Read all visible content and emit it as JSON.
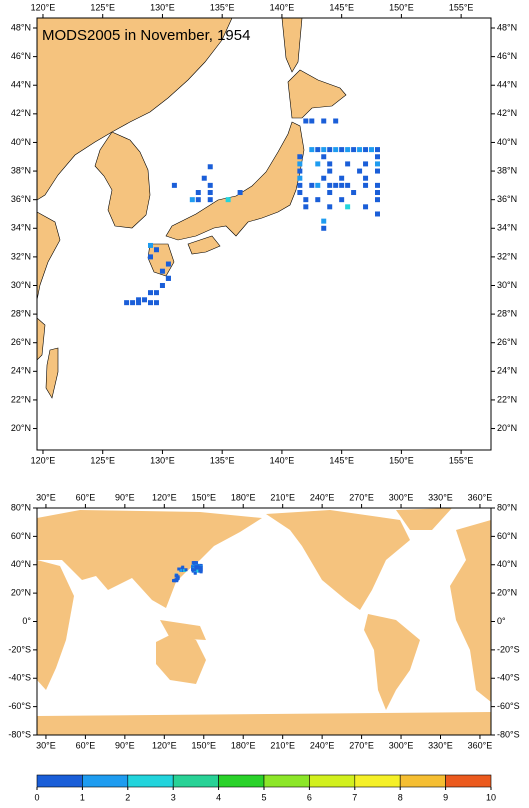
{
  "maps": [
    {
      "title": "MODS2005 in November, 1954",
      "xlim": [
        119.5,
        157.5
      ],
      "ylim": [
        18.5,
        48.7
      ],
      "xticks": [
        {
          "value": 120,
          "label": "120°E"
        },
        {
          "value": 125,
          "label": "125°E"
        },
        {
          "value": 130,
          "label": "130°E"
        },
        {
          "value": 135,
          "label": "135°E"
        },
        {
          "value": 140,
          "label": "140°E"
        },
        {
          "value": 145,
          "label": "145°E"
        },
        {
          "value": 150,
          "label": "150°E"
        },
        {
          "value": 155,
          "label": "155°E"
        }
      ],
      "yticks": [
        {
          "value": 20,
          "label": "20°N"
        },
        {
          "value": 22,
          "label": "22°N"
        },
        {
          "value": 24,
          "label": "24°N"
        },
        {
          "value": 26,
          "label": "26°N"
        },
        {
          "value": 28,
          "label": "28°N"
        },
        {
          "value": 30,
          "label": "30°N"
        },
        {
          "value": 32,
          "label": "32°N"
        },
        {
          "value": 34,
          "label": "34°N"
        },
        {
          "value": 36,
          "label": "36°N"
        },
        {
          "value": 38,
          "label": "38°N"
        },
        {
          "value": 40,
          "label": "40°N"
        },
        {
          "value": 42,
          "label": "42°N"
        },
        {
          "value": 44,
          "label": "44°N"
        },
        {
          "value": 46,
          "label": "46°N"
        },
        {
          "value": 48,
          "label": "48°N"
        }
      ]
    },
    {
      "xlim": [
        23.2,
        368.4
      ],
      "ylim": [
        -80,
        80
      ],
      "xticks": [
        {
          "value": 30,
          "label": "30°E"
        },
        {
          "value": 60,
          "label": "60°E"
        },
        {
          "value": 90,
          "label": "90°E"
        },
        {
          "value": 120,
          "label": "120°E"
        },
        {
          "value": 150,
          "label": "150°E"
        },
        {
          "value": 180,
          "label": "180°E"
        },
        {
          "value": 210,
          "label": "210°E"
        },
        {
          "value": 240,
          "label": "240°E"
        },
        {
          "value": 270,
          "label": "270°E"
        },
        {
          "value": 300,
          "label": "300°E"
        },
        {
          "value": 330,
          "label": "330°E"
        },
        {
          "value": 360,
          "label": "360°E"
        }
      ],
      "yticks": [
        {
          "value": 80,
          "label": "80°N"
        },
        {
          "value": 60,
          "label": "60°N"
        },
        {
          "value": 40,
          "label": "40°N"
        },
        {
          "value": 20,
          "label": "20°N"
        },
        {
          "value": 0,
          "label": "0°"
        },
        {
          "value": -20,
          "label": "-20°S"
        },
        {
          "value": -40,
          "label": "-40°S"
        },
        {
          "value": -60,
          "label": "-60°S"
        },
        {
          "value": -80,
          "label": "-80°S"
        }
      ]
    }
  ],
  "points": {
    "lon": [
      142,
      142.5,
      143.5,
      144.5,
      142.5,
      143,
      143.5,
      144,
      144.5,
      145,
      145.5,
      146,
      146.5,
      147,
      147.5,
      148,
      141.5,
      143.5,
      148,
      141.5,
      143,
      144,
      145.5,
      147,
      148,
      141.5,
      144,
      146.5,
      148,
      141.5,
      143.5,
      145,
      147,
      141.5,
      142.5,
      143,
      144,
      144.5,
      145,
      145.5,
      147,
      148,
      141.5,
      144,
      146,
      148,
      142,
      143,
      145,
      148,
      142,
      144,
      145.5,
      147,
      148,
      143.5,
      143.5,
      134,
      133.5,
      134,
      133,
      134,
      133,
      134,
      132.5,
      135.5,
      136.5,
      131,
      129,
      129.5,
      129,
      130.5,
      130,
      130.5,
      130,
      129.5,
      129,
      128.5,
      128,
      127.5,
      127,
      129,
      129.5,
      128,
      130.5
    ],
    "lat": [
      41.5,
      41.5,
      41.5,
      41.5,
      39.5,
      39.5,
      39.5,
      39.5,
      39.5,
      39.5,
      39.5,
      39.5,
      39.5,
      39.5,
      39.5,
      39.5,
      39,
      39,
      39,
      38.5,
      38.5,
      38.5,
      38.5,
      38.5,
      38.5,
      38,
      38,
      38,
      38,
      37.5,
      37.5,
      37.5,
      37.5,
      37,
      37,
      37,
      37,
      37,
      37,
      37,
      37,
      37,
      36.5,
      36.5,
      36.5,
      36.5,
      36,
      36,
      36,
      36,
      35.5,
      35.5,
      35.5,
      35.5,
      35,
      34.5,
      34,
      38.3,
      37.5,
      37,
      36.5,
      36.5,
      36,
      36,
      36,
      36,
      36.5,
      37,
      32.8,
      32.5,
      32,
      31.5,
      31,
      30.5,
      30,
      29.5,
      29.5,
      29,
      28.8,
      28.8,
      28.8,
      28.8,
      28.8,
      29,
      30.5
    ],
    "values": [
      0.5,
      0.5,
      0.5,
      0.5,
      1.5,
      0.5,
      1.5,
      0.5,
      1.5,
      0.5,
      1.5,
      0.5,
      1.5,
      0.5,
      1.5,
      0.5,
      0.5,
      0.5,
      0.5,
      1.5,
      1.5,
      0.5,
      0.5,
      0.5,
      1.5,
      0.5,
      0.5,
      0.5,
      0.5,
      1.5,
      0.5,
      0.5,
      0.5,
      0.5,
      0.5,
      1.5,
      0.5,
      0.5,
      0.5,
      0.5,
      0.5,
      0.5,
      0.5,
      0.5,
      0.5,
      0.5,
      0.5,
      0.5,
      0.5,
      0.5,
      0.5,
      0.5,
      2.5,
      0.5,
      0.5,
      1.5,
      0.5,
      0.5,
      0.5,
      0.5,
      0.5,
      0.5,
      0.5,
      0.5,
      1.5,
      2.5,
      0.5,
      0.5,
      1.5,
      0.5,
      0.5,
      0.5,
      0.5,
      0.5,
      0.5,
      0.5,
      0.5,
      0.5,
      0.5,
      0.5,
      0.5,
      0.5,
      0.5,
      0.5,
      0.5
    ]
  },
  "colorbar": {
    "ticks": [
      0,
      1,
      2,
      3,
      4,
      5,
      6,
      7,
      8,
      9,
      10
    ],
    "colors": [
      "#1a5ed8",
      "#1e9cf0",
      "#22d4dc",
      "#28d296",
      "#2ad22a",
      "#8ce628",
      "#d2f01e",
      "#f5f028",
      "#f5be32",
      "#eb5a1e"
    ]
  }
}
